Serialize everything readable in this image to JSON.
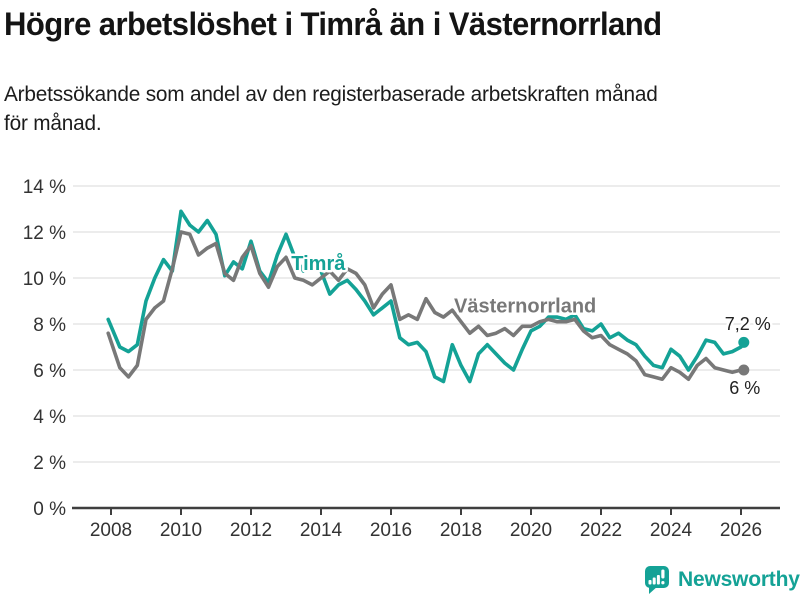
{
  "header": {
    "title": "Högre arbetslöshet i Timrå än i Västernorrland",
    "subtitle_lines": [
      "Arbetssökande som andel av den registerbaserade arbetskraften månad",
      "för månad."
    ]
  },
  "footer": {
    "brand": "Newsworthy",
    "logo_icon": "bar-chart-speech-bubble-icon"
  },
  "colors": {
    "timra": "#14A296",
    "vasternorrland": "#787878",
    "grid": "#E0E0E0",
    "axis": "#3F3F3F",
    "tick_text": "#333333",
    "value_text": "#222222",
    "brand": "#14A296",
    "background": "#FFFFFF"
  },
  "chart_data": {
    "type": "line",
    "title": "Högre arbetslöshet i Timrå än i Västernorrland",
    "subtitle": "Arbetssökande som andel av den registerbaserade arbetskraften månad för månad.",
    "y_unit": "%",
    "xlim": [
      2007.9,
      2026.9
    ],
    "ylim": [
      0,
      14
    ],
    "grid": "horizontal",
    "legend_position": "inline-labels",
    "x": [
      2007.92,
      2008.25,
      2008.5,
      2008.75,
      2009.0,
      2009.25,
      2009.5,
      2009.75,
      2010.0,
      2010.25,
      2010.5,
      2010.75,
      2011.0,
      2011.25,
      2011.5,
      2011.75,
      2012.0,
      2012.25,
      2012.5,
      2012.75,
      2013.0,
      2013.25,
      2013.5,
      2013.75,
      2014.0,
      2014.25,
      2014.5,
      2014.75,
      2015.0,
      2015.25,
      2015.5,
      2015.75,
      2016.0,
      2016.25,
      2016.5,
      2016.75,
      2017.0,
      2017.25,
      2017.5,
      2017.75,
      2018.0,
      2018.25,
      2018.5,
      2018.75,
      2019.0,
      2019.25,
      2019.5,
      2019.75,
      2020.0,
      2020.25,
      2020.5,
      2020.75,
      2021.0,
      2021.25,
      2021.5,
      2021.75,
      2022.0,
      2022.25,
      2022.5,
      2022.75,
      2023.0,
      2023.25,
      2023.5,
      2023.75,
      2024.0,
      2024.25,
      2024.5,
      2024.75,
      2025.0,
      2025.25,
      2025.5,
      2025.75,
      2026.0,
      2026.08
    ],
    "series": [
      {
        "name": "Timrå",
        "color_key": "timra",
        "end_label": "7,2 %",
        "values": [
          8.2,
          7.0,
          6.8,
          7.1,
          9.0,
          10.0,
          10.8,
          10.3,
          12.9,
          12.3,
          12.0,
          12.5,
          11.9,
          10.1,
          10.7,
          10.4,
          11.6,
          10.3,
          9.8,
          11.0,
          11.9,
          10.9,
          10.3,
          10.6,
          10.3,
          9.3,
          9.7,
          9.9,
          9.5,
          9.0,
          8.4,
          8.7,
          9.0,
          7.4,
          7.1,
          7.2,
          6.8,
          5.7,
          5.5,
          7.1,
          6.2,
          5.5,
          6.7,
          7.1,
          6.7,
          6.3,
          6.0,
          6.9,
          7.7,
          7.9,
          8.3,
          8.3,
          8.2,
          8.4,
          7.8,
          7.7,
          8.0,
          7.4,
          7.6,
          7.3,
          7.1,
          6.6,
          6.2,
          6.1,
          6.9,
          6.6,
          6.0,
          6.6,
          7.3,
          7.2,
          6.7,
          6.8,
          7.0,
          7.2
        ]
      },
      {
        "name": "Västernorrland",
        "color_key": "vasternorrland",
        "end_label": "6 %",
        "values": [
          7.6,
          6.1,
          5.7,
          6.2,
          8.2,
          8.7,
          9.0,
          10.4,
          12.0,
          11.9,
          11.0,
          11.3,
          11.5,
          10.2,
          9.9,
          10.9,
          11.4,
          10.2,
          9.6,
          10.5,
          10.9,
          10.0,
          9.9,
          9.7,
          10.0,
          10.3,
          9.9,
          10.4,
          10.2,
          9.7,
          8.7,
          9.3,
          9.7,
          8.2,
          8.4,
          8.2,
          9.1,
          8.5,
          8.3,
          8.6,
          8.1,
          7.6,
          7.9,
          7.5,
          7.6,
          7.8,
          7.5,
          7.9,
          7.9,
          8.1,
          8.2,
          8.1,
          8.1,
          8.2,
          7.7,
          7.4,
          7.5,
          7.1,
          6.9,
          6.7,
          6.4,
          5.8,
          5.7,
          5.6,
          6.1,
          5.9,
          5.6,
          6.2,
          6.5,
          6.1,
          6.0,
          5.9,
          6.0,
          6.0
        ]
      }
    ],
    "y_ticks": [
      {
        "v": 0,
        "label": "0 %"
      },
      {
        "v": 2,
        "label": "2 %"
      },
      {
        "v": 4,
        "label": "4 %"
      },
      {
        "v": 6,
        "label": "6 %"
      },
      {
        "v": 8,
        "label": "8 %"
      },
      {
        "v": 10,
        "label": "10 %"
      },
      {
        "v": 12,
        "label": "12 %"
      },
      {
        "v": 14,
        "label": "14 %"
      }
    ],
    "x_ticks": [
      {
        "v": 2008,
        "label": "2008"
      },
      {
        "v": 2010,
        "label": "2010"
      },
      {
        "v": 2012,
        "label": "2012"
      },
      {
        "v": 2014,
        "label": "2014"
      },
      {
        "v": 2016,
        "label": "2016"
      },
      {
        "v": 2018,
        "label": "2018"
      },
      {
        "v": 2020,
        "label": "2020"
      },
      {
        "v": 2022,
        "label": "2022"
      },
      {
        "v": 2024,
        "label": "2024"
      },
      {
        "v": 2026,
        "label": "2026"
      }
    ],
    "annotations": [
      {
        "id": "timra-series-label",
        "text": "Timrå",
        "x": 2013.15,
        "y": 10.35,
        "anchor": "start",
        "style": "series",
        "color_key": "timra"
      },
      {
        "id": "vasternorrland-series-label",
        "text": "Västernorrland",
        "x": 2017.8,
        "y": 8.5,
        "anchor": "start",
        "style": "series",
        "color_key": "vasternorrland"
      },
      {
        "id": "timra-end-value",
        "text": "7,2 %",
        "x": 2026.85,
        "y": 7.75,
        "anchor": "end",
        "style": "value"
      },
      {
        "id": "vasternorrland-end-value",
        "text": "6 %",
        "x": 2026.55,
        "y": 4.95,
        "anchor": "end",
        "style": "value"
      }
    ]
  }
}
